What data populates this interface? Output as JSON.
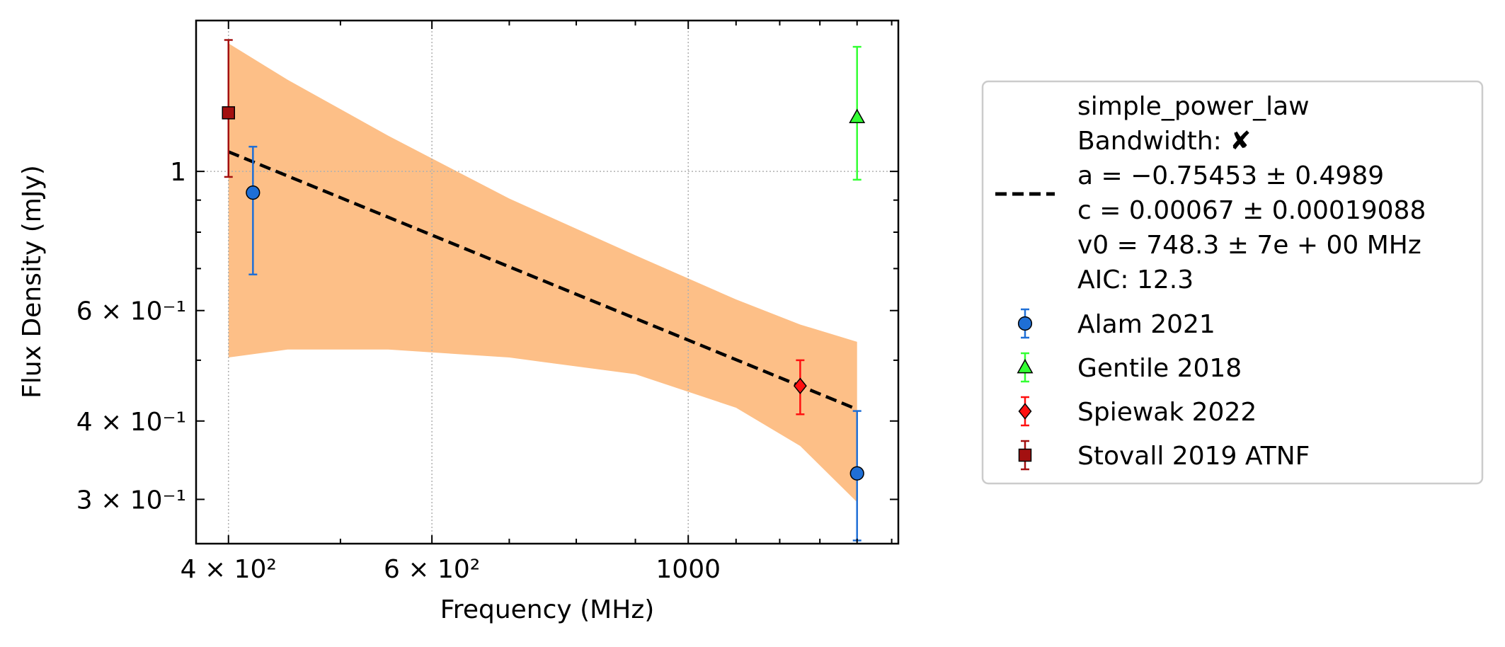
{
  "chart_data": {
    "type": "scatter",
    "xlabel": "Frequency (MHz)",
    "ylabel": "Flux Density (mJy)",
    "xscale": "log",
    "yscale": "log",
    "xlim": [
      375,
      1520
    ],
    "ylim": [
      0.255,
      1.74
    ],
    "grid": "major, dotted",
    "legend_position": "outside right",
    "xticks": [
      {
        "value": 400,
        "label": "4 × 10²"
      },
      {
        "value": 600,
        "label": "6 × 10²"
      },
      {
        "value": 1000,
        "label": "1000"
      }
    ],
    "yticks": [
      {
        "value": 1.0,
        "label": "1"
      },
      {
        "value": 0.6,
        "label": "6 × 10⁻¹"
      },
      {
        "value": 0.4,
        "label": "4 × 10⁻¹"
      },
      {
        "value": 0.3,
        "label": "3 × 10⁻¹"
      }
    ],
    "fit": {
      "name": "simple_power_law",
      "legend_lines": [
        "simple_power_law",
        "Bandwidth: ✘",
        "a = −0.75453 ± 0.4989",
        "c = 0.00067 ± 0.00019088",
        "v0 = 748.3 ± 7e + 00 MHz",
        "AIC: 12.3"
      ],
      "a": -0.75453,
      "c": 0.00067,
      "v0": 748.3,
      "x_range": [
        400,
        1400
      ],
      "line_color": "#000000",
      "band_color": "#fdbf87",
      "band": [
        {
          "x": 400,
          "low": 0.505,
          "high": 1.6
        },
        {
          "x": 450,
          "low": 0.52,
          "high": 1.4
        },
        {
          "x": 550,
          "low": 0.52,
          "high": 1.14
        },
        {
          "x": 700,
          "low": 0.505,
          "high": 0.905
        },
        {
          "x": 900,
          "low": 0.475,
          "high": 0.735
        },
        {
          "x": 1100,
          "low": 0.42,
          "high": 0.625
        },
        {
          "x": 1250,
          "low": 0.365,
          "high": 0.57
        },
        {
          "x": 1400,
          "low": 0.297,
          "high": 0.535
        }
      ]
    },
    "series": [
      {
        "name": "Alam 2021",
        "marker": "circle",
        "color": "#1f6fd6",
        "ecolor": "#1f6fd6",
        "points": [
          {
            "x": 420,
            "y": 0.925,
            "yerr_low": 0.24,
            "yerr_high": 0.17
          },
          {
            "x": 1400,
            "y": 0.33,
            "yerr_low": 0.072,
            "yerr_high": 0.085
          }
        ]
      },
      {
        "name": "Gentile 2018",
        "marker": "triangle",
        "color": "#33ff33",
        "ecolor": "#33ff33",
        "points": [
          {
            "x": 1400,
            "y": 1.22,
            "yerr_low": 0.25,
            "yerr_high": 0.36
          }
        ]
      },
      {
        "name": "Spiewak 2022",
        "marker": "diamond",
        "color": "#ff1010",
        "ecolor": "#ff1010",
        "points": [
          {
            "x": 1250,
            "y": 0.455,
            "yerr_low": 0.045,
            "yerr_high": 0.045
          }
        ]
      },
      {
        "name": "Stovall 2019 ATNF",
        "marker": "square",
        "color": "#a31010",
        "ecolor": "#a31010",
        "points": [
          {
            "x": 400,
            "y": 1.24,
            "yerr_low": 0.26,
            "yerr_high": 0.38
          }
        ]
      }
    ]
  }
}
